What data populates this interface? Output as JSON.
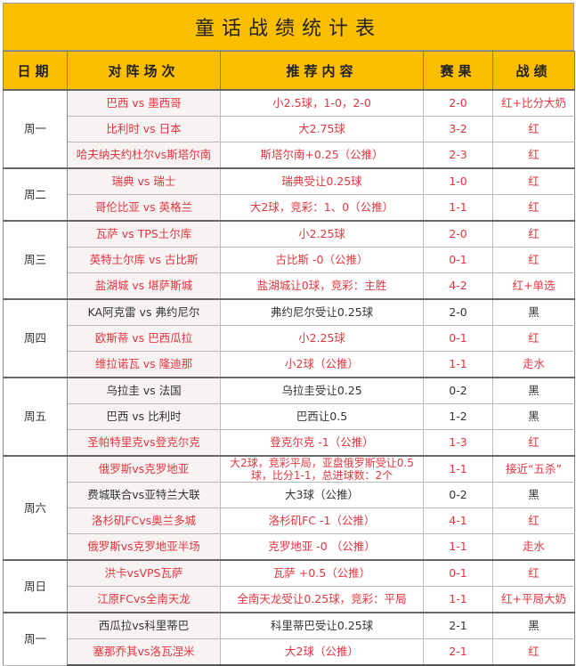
{
  "title": "童话战绩统计表",
  "headers": [
    "日期",
    "对阵场次",
    "推荐内容",
    "赛果",
    "战绩"
  ],
  "colors": {
    "header_bg": "#fbbf00",
    "win_text": "#e2363f",
    "loss_text": "#333333"
  },
  "groups": [
    {
      "day": "周一",
      "rows": [
        {
          "match": "巴西 vs 墨西哥",
          "tip": "小2.5球，1-0，2-0",
          "score": "2-0",
          "result": "红+比分大奶",
          "red": true
        },
        {
          "match": "比利时 vs 日本",
          "tip": "大2.75球",
          "score": "3-2",
          "result": "红",
          "red": true
        },
        {
          "match": "哈夫纳夫约杜尔vs斯塔尔南",
          "tip": "斯塔尔南+0.25（公推）",
          "score": "2-3",
          "result": "红",
          "red": true
        }
      ]
    },
    {
      "day": "周二",
      "rows": [
        {
          "match": "瑞典 vs 瑞士",
          "tip": "瑞典受让0.25球",
          "score": "1-0",
          "result": "红",
          "red": true
        },
        {
          "match": "哥伦比亚 vs 英格兰",
          "tip": "大2球，竞彩：1、0（公推）",
          "score": "1-1",
          "result": "红",
          "red": true
        }
      ]
    },
    {
      "day": "周三",
      "rows": [
        {
          "match": "瓦萨 vs TPS土尔库",
          "tip": "小2.25球",
          "score": "2-0",
          "result": "红",
          "red": true
        },
        {
          "match": "英特土尔库 vs 古比斯",
          "tip": "古比斯 -0（公推）",
          "score": "0-1",
          "result": "红",
          "red": true
        },
        {
          "match": "盐湖城 vs 堪萨斯城",
          "tip": "盐湖城让0球，竞彩：主胜",
          "score": "4-2",
          "result": "红+单选",
          "red": true
        }
      ]
    },
    {
      "day": "周四",
      "rows": [
        {
          "match": "KA阿克雷 vs 弗约尼尔",
          "tip": "弗约尼尔受让0.25球",
          "score": "2-0",
          "result": "黑",
          "red": false
        },
        {
          "match": "欧斯蒂 vs 巴西瓜拉",
          "tip": "小2.25球",
          "score": "0-1",
          "result": "红",
          "red": true
        },
        {
          "match": "维拉诺瓦 vs 隆迪那",
          "tip": "小2球（公推）",
          "score": "1-1",
          "result": "走水",
          "red": true
        }
      ]
    },
    {
      "day": "周五",
      "rows": [
        {
          "match": "乌拉圭 vs 法国",
          "tip": "乌拉圭受让0.25",
          "score": "0-2",
          "result": "黑",
          "red": false
        },
        {
          "match": "巴西 vs 比利时",
          "tip": "巴西让0.5",
          "score": "1-2",
          "result": "黑",
          "red": false
        },
        {
          "match": "圣帕特里克vs登克尔克",
          "tip": "登克尔克 -1（公推）",
          "score": "1-3",
          "result": "红",
          "red": true
        }
      ]
    },
    {
      "day": "周六",
      "rows": [
        {
          "match": "俄罗斯vs克罗地亚",
          "tip": "大2球，竞彩平局，亚盘俄罗斯受让0.5球，比分1-1，总进球数：2个",
          "score": "1-1",
          "result": "接近“五杀”",
          "red": true
        },
        {
          "match": "费城联合vs亚特兰大联",
          "tip": "大3球（公推）",
          "score": "0-2",
          "result": "黑",
          "red": false
        },
        {
          "match": "洛杉矶FCvs奥兰多城",
          "tip": "洛杉矶FC -1（公推）",
          "score": "4-1",
          "result": "红",
          "red": true
        },
        {
          "match": "俄罗斯vs克罗地亚半场",
          "tip": "克罗地亚 -0 （公推）",
          "score": "1-1",
          "result": "走水",
          "red": true
        }
      ]
    },
    {
      "day": "周日",
      "rows": [
        {
          "match": "洪卡vsVPS瓦萨",
          "tip": "瓦萨 +0.5（公推）",
          "score": "0-1",
          "result": "红",
          "red": true
        },
        {
          "match": "江原FCvs全南天龙",
          "tip": "全南天龙受让0.25球，竞彩：平局",
          "score": "1-1",
          "result": "红+平局大奶",
          "red": true
        }
      ]
    },
    {
      "day": "周一",
      "rows": [
        {
          "match": "西瓜拉vs科里蒂巴",
          "tip": "科里蒂巴受让0.25球",
          "score": "2-1",
          "result": "黑",
          "red": false
        },
        {
          "match": "塞那乔其vs洛瓦涅米",
          "tip": "大2球（公推）",
          "score": "2-1",
          "result": "红",
          "red": true
        }
      ]
    }
  ]
}
